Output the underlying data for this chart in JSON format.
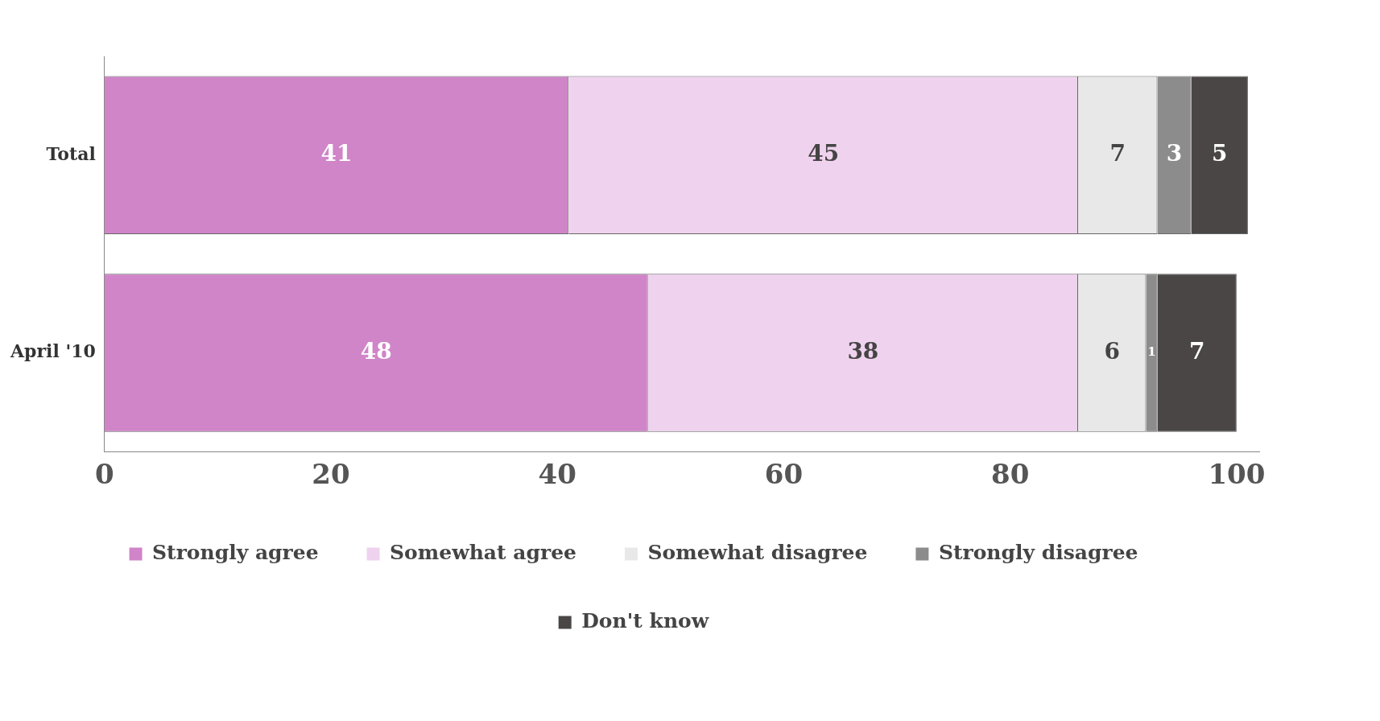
{
  "chart_data": {
    "type": "bar",
    "orientation": "horizontal",
    "stacked": true,
    "categories": [
      "Total",
      "April '10"
    ],
    "series": [
      {
        "name": "Strongly agree",
        "color": "#d085c8",
        "values": [
          41,
          48
        ]
      },
      {
        "name": "Somewhat agree",
        "color": "#efd3ee",
        "values": [
          45,
          38
        ]
      },
      {
        "name": "Somewhat disagree",
        "color": "#e8e8e8",
        "values": [
          7,
          6
        ]
      },
      {
        "name": "Strongly disagree",
        "color": "#8c8c8c",
        "values": [
          3,
          1
        ]
      },
      {
        "name": "Don't know",
        "color": "#4a4646",
        "values": [
          5,
          7
        ]
      }
    ],
    "xlim": [
      0,
      102
    ],
    "xticks": [
      0,
      20,
      40,
      60,
      80,
      100
    ],
    "data_labels": true,
    "legend": "bottom",
    "grid": false
  }
}
